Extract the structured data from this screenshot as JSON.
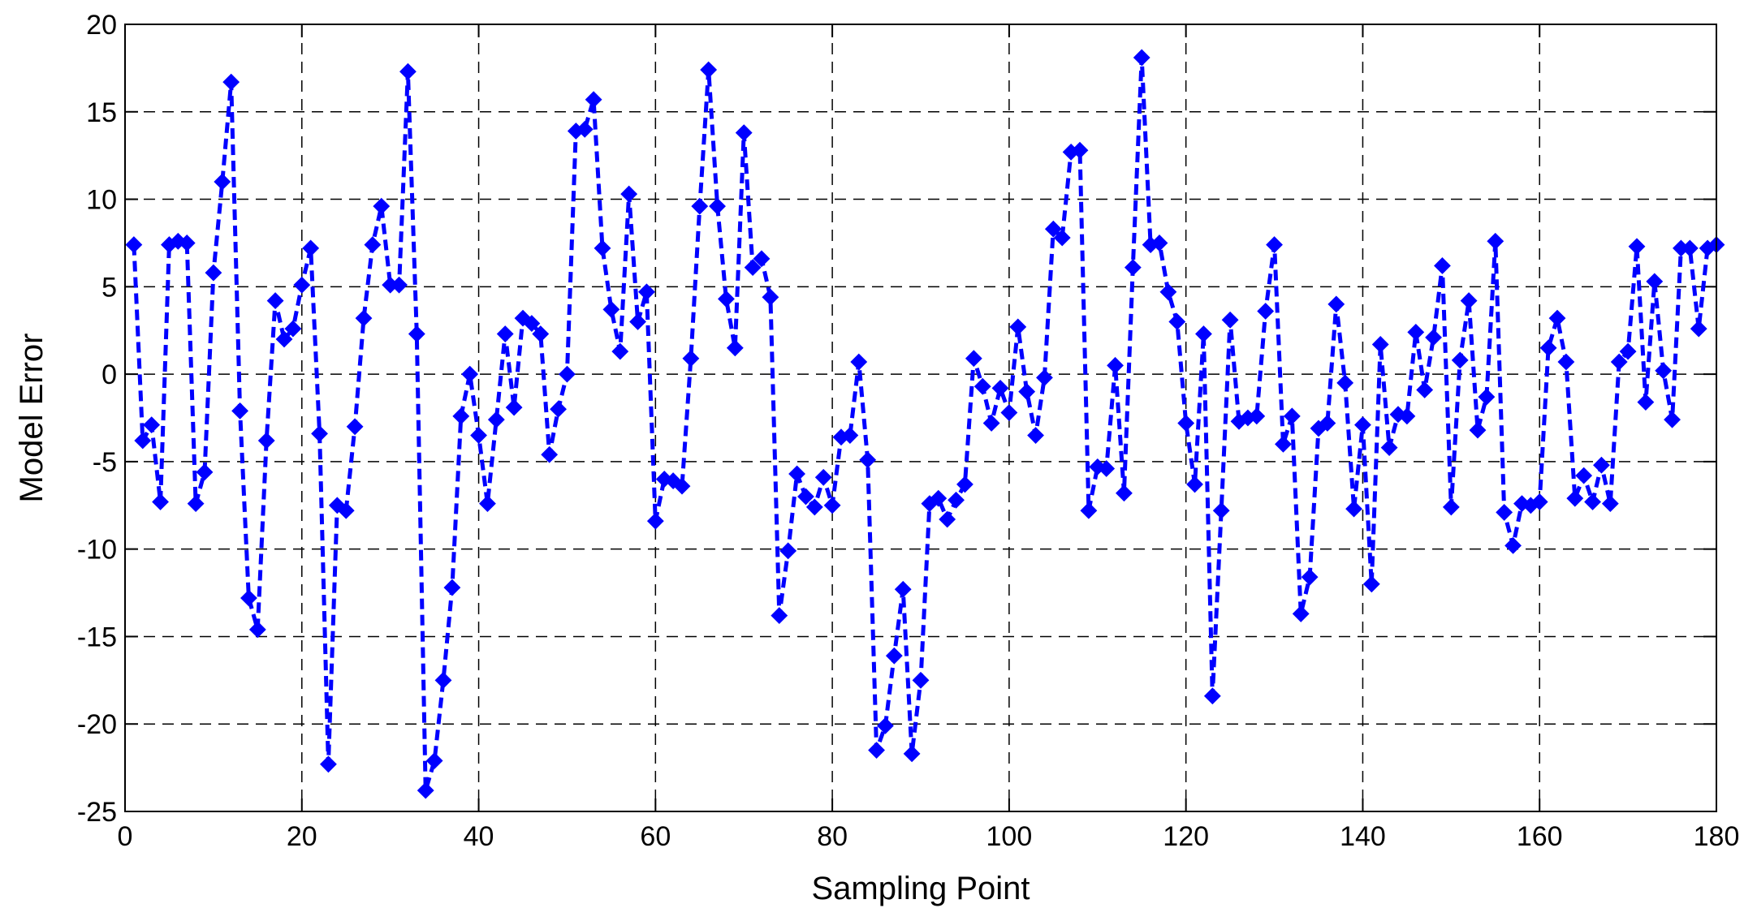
{
  "chart_data": {
    "type": "line",
    "title": "",
    "xlabel": "Sampling Point",
    "ylabel": "Model Error",
    "xlim": [
      0,
      180
    ],
    "ylim": [
      -25,
      20
    ],
    "x_ticks": [
      0,
      20,
      40,
      60,
      80,
      100,
      120,
      140,
      160,
      180
    ],
    "y_ticks": [
      20,
      15,
      10,
      5,
      0,
      -5,
      -10,
      -15,
      -20,
      -25
    ],
    "grid": true,
    "grid_style": "dashed",
    "legend": "none",
    "series": [
      {
        "color": "#0000ff",
        "line_style": "dashed",
        "marker": "diamond",
        "x": [
          1,
          2,
          3,
          4,
          5,
          6,
          7,
          8,
          9,
          10,
          11,
          12,
          13,
          14,
          15,
          16,
          17,
          18,
          19,
          20,
          21,
          22,
          23,
          24,
          25,
          26,
          27,
          28,
          29,
          30,
          31,
          32,
          33,
          34,
          35,
          36,
          37,
          38,
          39,
          40,
          41,
          42,
          43,
          44,
          45,
          46,
          47,
          48,
          49,
          50,
          51,
          52,
          53,
          54,
          55,
          56,
          57,
          58,
          59,
          60,
          61,
          62,
          63,
          64,
          65,
          66,
          67,
          68,
          69,
          70,
          71,
          72,
          73,
          74,
          75,
          76,
          77,
          78,
          79,
          80,
          81,
          82,
          83,
          84,
          85,
          86,
          87,
          88,
          89,
          90,
          91,
          92,
          93,
          94,
          95,
          96,
          97,
          98,
          99,
          100,
          101,
          102,
          103,
          104,
          105,
          106,
          107,
          108,
          109,
          110,
          111,
          112,
          113,
          114,
          115,
          116,
          117,
          118,
          119,
          120,
          121,
          122,
          123,
          124,
          125,
          126,
          127,
          128,
          129,
          130,
          131,
          132,
          133,
          134,
          135,
          136,
          137,
          138,
          139,
          140,
          141,
          142,
          143,
          144,
          145,
          146,
          147,
          148,
          149,
          150,
          151,
          152,
          153,
          154,
          155,
          156,
          157,
          158,
          159,
          160,
          161,
          162,
          163,
          164,
          165,
          166,
          167,
          168,
          169,
          170,
          171,
          172,
          173,
          174,
          175,
          176,
          177,
          178,
          179,
          180
        ],
        "y": [
          7.4,
          -3.8,
          -2.9,
          -7.3,
          7.4,
          7.6,
          7.5,
          -7.4,
          -5.6,
          5.8,
          11.0,
          16.7,
          -2.1,
          -12.8,
          -14.6,
          -3.8,
          4.2,
          2.0,
          2.6,
          5.1,
          7.2,
          -3.4,
          -22.3,
          -7.5,
          -7.8,
          -3.0,
          3.2,
          7.4,
          9.6,
          5.1,
          5.1,
          17.3,
          2.3,
          -23.8,
          -22.1,
          -17.5,
          -12.2,
          -2.4,
          0.0,
          -3.5,
          -7.4,
          -2.6,
          2.3,
          -1.9,
          3.2,
          2.9,
          2.3,
          -4.6,
          -2.0,
          0.0,
          13.9,
          14.0,
          15.7,
          7.2,
          3.7,
          1.3,
          10.3,
          3.0,
          4.7,
          -8.4,
          -6.0,
          -6.1,
          -6.4,
          0.9,
          9.6,
          17.4,
          9.6,
          4.3,
          1.5,
          13.8,
          6.1,
          6.6,
          4.4,
          -13.8,
          -10.1,
          -5.7,
          -7.0,
          -7.6,
          -5.9,
          -7.5,
          -3.6,
          -3.5,
          0.7,
          -4.9,
          -21.5,
          -20.1,
          -16.1,
          -12.3,
          -21.7,
          -17.5,
          -7.4,
          -7.1,
          -8.3,
          -7.2,
          -6.3,
          0.9,
          -0.7,
          -2.8,
          -0.8,
          -2.2,
          2.7,
          -1.0,
          -3.5,
          -0.2,
          8.3,
          7.8,
          12.7,
          12.8,
          -7.8,
          -5.3,
          -5.4,
          0.5,
          -6.8,
          6.1,
          18.1,
          7.4,
          7.5,
          4.7,
          3.0,
          -2.8,
          -6.3,
          2.3,
          -18.4,
          -7.8,
          3.1,
          -2.7,
          -2.5,
          -2.4,
          3.6,
          7.4,
          -4.0,
          -2.4,
          -13.7,
          -11.6,
          -3.1,
          -2.8,
          4.0,
          -0.5,
          -7.7,
          -2.9,
          -12.0,
          1.7,
          -4.2,
          -2.3,
          -2.4,
          2.4,
          -0.9,
          2.1,
          6.2,
          -7.6,
          0.8,
          4.2,
          -3.2,
          -1.3,
          7.6,
          -7.9,
          -9.8,
          -7.4,
          -7.5,
          -7.3,
          1.5,
          3.2,
          0.7,
          -7.1,
          -5.8,
          -7.3,
          -5.2,
          -7.4,
          0.7,
          1.3,
          7.3,
          -1.6,
          5.3,
          0.2,
          -2.6,
          7.2,
          7.2,
          2.6,
          7.2,
          7.4
        ]
      }
    ]
  }
}
